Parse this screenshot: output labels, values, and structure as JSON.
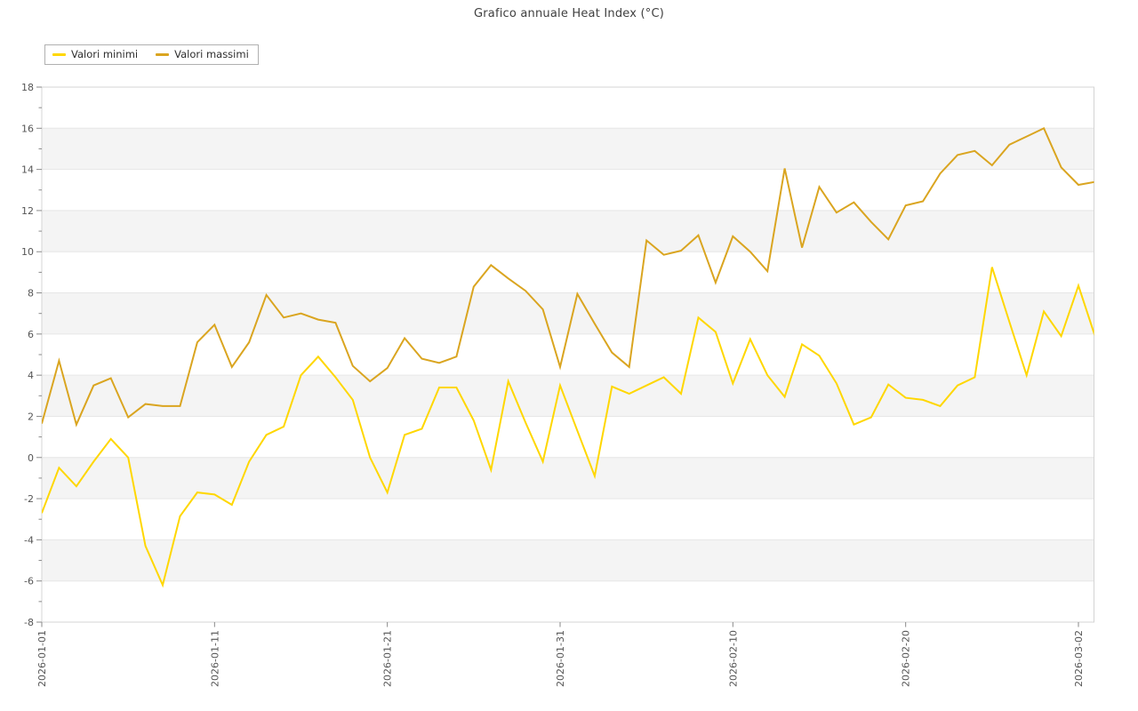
{
  "title": "Grafico annuale Heat Index (°C)",
  "legend": {
    "items": [
      {
        "label": "Valori minimi",
        "color": "#FFD700"
      },
      {
        "label": "Valori massimi",
        "color": "#DAA520"
      }
    ]
  },
  "chart_data": {
    "type": "line",
    "title": "Grafico annuale Heat Index (°C)",
    "xlabel": "",
    "ylabel": "",
    "x_axis": {
      "tick_labels": [
        "2026-01-01",
        "2026-01-11",
        "2026-01-21",
        "2026-01-31",
        "2026-02-10",
        "2026-02-20",
        "2026-03-02"
      ],
      "tick_day_indices": [
        0,
        10,
        20,
        30,
        40,
        50,
        60
      ],
      "total_days": 62,
      "label_rotation_deg": 90
    },
    "y_axis": {
      "min": -8,
      "max": 18,
      "major_step": 2,
      "minor_step": 1
    },
    "grid": true,
    "legend_position": "top-left-outside",
    "background_bands": {
      "color": "#f4f4f4",
      "upper_edges": [
        16,
        12,
        8,
        4,
        0,
        -4
      ],
      "band_height_units": 2
    },
    "series": [
      {
        "name": "Valori minimi",
        "color": "#FFD700",
        "values": [
          -2.7,
          -0.5,
          -1.4,
          -0.2,
          0.9,
          0.0,
          -4.3,
          -6.2,
          -2.85,
          -1.7,
          -1.8,
          -2.3,
          -0.2,
          1.1,
          1.5,
          4.0,
          4.9,
          3.9,
          2.8,
          0.0,
          -1.7,
          1.1,
          1.4,
          3.4,
          3.4,
          1.8,
          -0.6,
          3.7,
          1.7,
          -0.2,
          3.5,
          1.3,
          -0.9,
          3.45,
          3.1,
          3.5,
          3.9,
          3.1,
          6.8,
          6.1,
          3.6,
          5.75,
          4.0,
          2.95,
          5.5,
          4.95,
          3.6,
          1.6,
          1.95,
          3.55,
          2.9,
          2.8,
          2.5,
          3.5,
          3.9,
          9.25,
          6.6,
          4.0,
          7.1,
          5.9,
          8.35,
          5.8
        ]
      },
      {
        "name": "Valori massimi",
        "color": "#DAA520",
        "values": [
          1.65,
          4.7,
          1.6,
          3.5,
          3.85,
          1.95,
          2.6,
          2.5,
          2.5,
          5.6,
          6.45,
          4.4,
          5.6,
          7.9,
          6.8,
          7.0,
          6.7,
          6.55,
          4.45,
          3.7,
          4.35,
          5.8,
          4.8,
          4.6,
          4.9,
          8.3,
          9.35,
          8.7,
          8.1,
          7.2,
          4.4,
          7.95,
          6.5,
          5.1,
          4.4,
          10.55,
          9.85,
          10.05,
          10.8,
          8.5,
          10.75,
          10.0,
          9.05,
          14.05,
          10.2,
          13.15,
          11.9,
          12.4,
          11.45,
          10.6,
          12.25,
          12.45,
          13.8,
          14.7,
          14.9,
          14.2,
          15.2,
          15.6,
          16.0,
          14.1,
          13.25,
          13.4
        ]
      }
    ],
    "colors": {
      "gridline": "#e6e6e6",
      "plot_border": "#d4d4d4",
      "tick": "#8a8a8a",
      "tick_label": "#555555",
      "title_text": "#3f3f3f"
    }
  }
}
